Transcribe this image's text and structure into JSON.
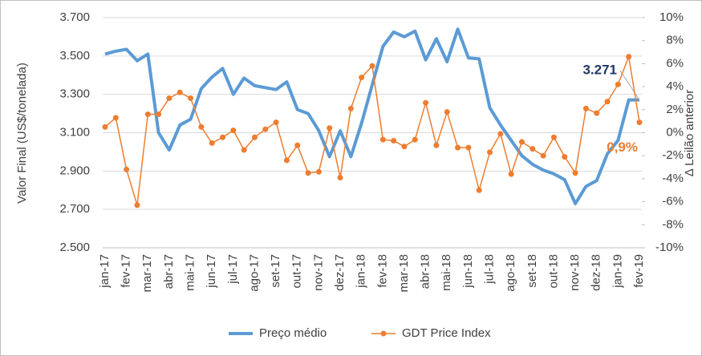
{
  "chart_data": {
    "type": "line",
    "y_axis_label": "Valor Final (US$/tonelada)",
    "y2_axis_label": "Δ Leilão anterior",
    "categories": [
      "jan-17",
      null,
      "fev-17",
      null,
      "mar-17",
      null,
      "abr-17",
      null,
      "mai-17",
      null,
      "jun-17",
      null,
      "jul-17",
      null,
      "ago-17",
      null,
      "set-17",
      null,
      "out-17",
      null,
      "nov-17",
      null,
      "dez-17",
      null,
      "jan-18",
      null,
      "fev-18",
      null,
      "mar-18",
      null,
      "abr-18",
      null,
      "mai-18",
      null,
      "jun-18",
      null,
      "jul-18",
      null,
      "ago-18",
      null,
      "set-18",
      null,
      "out-18",
      null,
      "nov-18",
      null,
      "dez-18",
      null,
      "jan-19",
      null,
      "fev-19"
    ],
    "series": [
      {
        "name": "Preço médio",
        "color": "#5b9bd5",
        "values": [
          3510,
          3525,
          3535,
          3475,
          3510,
          3100,
          3010,
          3140,
          3170,
          3330,
          3390,
          3435,
          3300,
          3385,
          3345,
          3335,
          3325,
          3365,
          3220,
          3200,
          3110,
          2975,
          3110,
          2975,
          3150,
          3350,
          3550,
          3625,
          3600,
          3630,
          3480,
          3590,
          3470,
          3640,
          3490,
          3485,
          3230,
          3140,
          3060,
          2980,
          2935,
          2905,
          2885,
          2855,
          2730,
          2820,
          2850,
          2990,
          3060,
          3271,
          3271
        ],
        "value_labels": [
          null,
          null,
          null,
          null,
          null,
          null,
          null,
          null,
          null,
          null,
          null,
          null,
          null,
          null,
          null,
          null,
          null,
          null,
          null,
          null,
          null,
          null,
          null,
          null,
          null,
          null,
          null,
          null,
          null,
          null,
          null,
          null,
          null,
          null,
          null,
          null,
          null,
          null,
          null,
          null,
          null,
          null,
          null,
          null,
          null,
          null,
          null,
          null,
          null,
          null,
          "3.271"
        ]
      },
      {
        "name": "GDT Price Index",
        "color": "#ed7d31",
        "axis": "y2",
        "values": [
          0.5,
          1.3,
          -3.2,
          -6.3,
          1.6,
          1.6,
          3.0,
          3.5,
          3.0,
          0.5,
          -0.9,
          -0.4,
          0.2,
          -1.5,
          -0.4,
          0.3,
          0.9,
          -2.4,
          -1.1,
          -3.5,
          -3.4,
          0.4,
          -3.9,
          2.1,
          4.8,
          5.8,
          -0.6,
          -0.7,
          -1.2,
          -0.6,
          2.6,
          -1.1,
          1.8,
          -1.3,
          -1.3,
          -5.0,
          -1.7,
          -0.1,
          -3.6,
          -0.8,
          -1.4,
          -2.0,
          -0.4,
          -2.1,
          -3.5,
          2.1,
          1.7,
          2.7,
          4.2,
          6.6,
          0.9
        ],
        "value_labels": [
          null,
          null,
          null,
          null,
          null,
          null,
          null,
          null,
          null,
          null,
          null,
          null,
          null,
          null,
          null,
          null,
          null,
          null,
          null,
          null,
          null,
          null,
          null,
          null,
          null,
          null,
          null,
          null,
          null,
          null,
          null,
          null,
          null,
          null,
          null,
          null,
          null,
          null,
          null,
          null,
          null,
          null,
          null,
          null,
          null,
          null,
          null,
          null,
          null,
          null,
          "0,9%"
        ]
      }
    ],
    "ylim": [
      2500,
      3700
    ],
    "yticks": [
      {
        "value": 2500,
        "label": "2.500"
      },
      {
        "value": 2700,
        "label": "2.700"
      },
      {
        "value": 2900,
        "label": "2.900"
      },
      {
        "value": 3100,
        "label": "3.100"
      },
      {
        "value": 3300,
        "label": "3.300"
      },
      {
        "value": 3500,
        "label": "3.500"
      },
      {
        "value": 3700,
        "label": "3.700"
      }
    ],
    "y2lim": [
      -10,
      10
    ],
    "y2ticks": [
      {
        "value": -10,
        "label": "-10%"
      },
      {
        "value": -8,
        "label": "-8%"
      },
      {
        "value": -6,
        "label": "-6%"
      },
      {
        "value": -4,
        "label": "-4%"
      },
      {
        "value": -2,
        "label": "-2%"
      },
      {
        "value": 0,
        "label": "0%"
      },
      {
        "value": 2,
        "label": "2%"
      },
      {
        "value": 4,
        "label": "4%"
      },
      {
        "value": 6,
        "label": "6%"
      },
      {
        "value": 8,
        "label": "8%"
      },
      {
        "value": 10,
        "label": "10%"
      }
    ],
    "grid": true,
    "legend": "bottom"
  }
}
